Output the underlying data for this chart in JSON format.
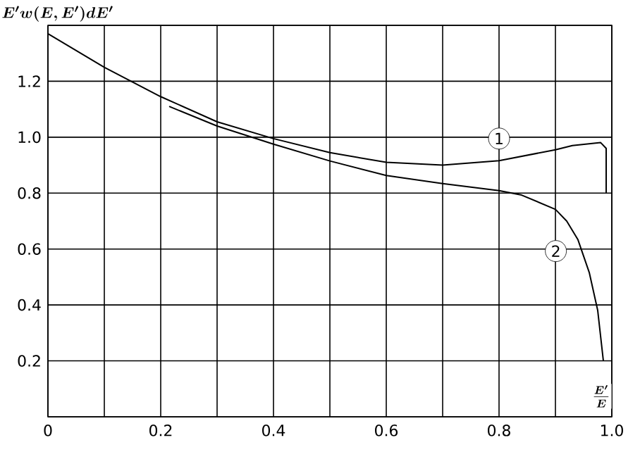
{
  "chart_data": {
    "type": "line",
    "xlabel": "\\frac{E'}{E}",
    "ylabel": "E'w(E,E')dE'",
    "xlim": [
      0,
      1.0
    ],
    "ylim": [
      0,
      1.4
    ],
    "xticks": [
      0,
      {
        "value": 0.1,
        "label": null
      },
      0.2,
      {
        "value": 0.3,
        "label": null
      },
      0.4,
      {
        "value": 0.5,
        "label": null
      },
      0.6,
      {
        "value": 0.7,
        "label": null
      },
      0.8,
      {
        "value": 0.9,
        "label": null
      },
      {
        "value": 1.0,
        "label": "1.0"
      }
    ],
    "yticks": [
      {
        "value": 0,
        "label": null
      },
      0.2,
      0.4,
      0.6,
      0.8,
      {
        "value": 1.0,
        "label": "1.0"
      },
      1.2,
      {
        "value": 1.4,
        "label": null
      }
    ],
    "grid": true,
    "marker": "none",
    "line_style": "solid",
    "series": [
      {
        "name": "1",
        "color": "#000000",
        "x": [
          0,
          0.1,
          0.2,
          0.3,
          0.4,
          0.5,
          0.6,
          0.7,
          0.8,
          0.9,
          0.93,
          0.98,
          0.99,
          0.99
        ],
        "values": [
          1.37,
          1.25,
          1.145,
          1.055,
          0.995,
          0.945,
          0.91,
          0.9,
          0.916,
          0.955,
          0.97,
          0.981,
          0.96,
          0.8
        ]
      },
      {
        "name": "2",
        "color": "#000000",
        "x": [
          0.215,
          0.3,
          0.4,
          0.5,
          0.6,
          0.7,
          0.8,
          0.84,
          0.9,
          0.92,
          0.94,
          0.96,
          0.975,
          0.985
        ],
        "values": [
          1.11,
          1.04,
          0.975,
          0.915,
          0.863,
          0.834,
          0.809,
          0.793,
          0.742,
          0.7,
          0.633,
          0.516,
          0.38,
          0.2
        ]
      }
    ]
  }
}
